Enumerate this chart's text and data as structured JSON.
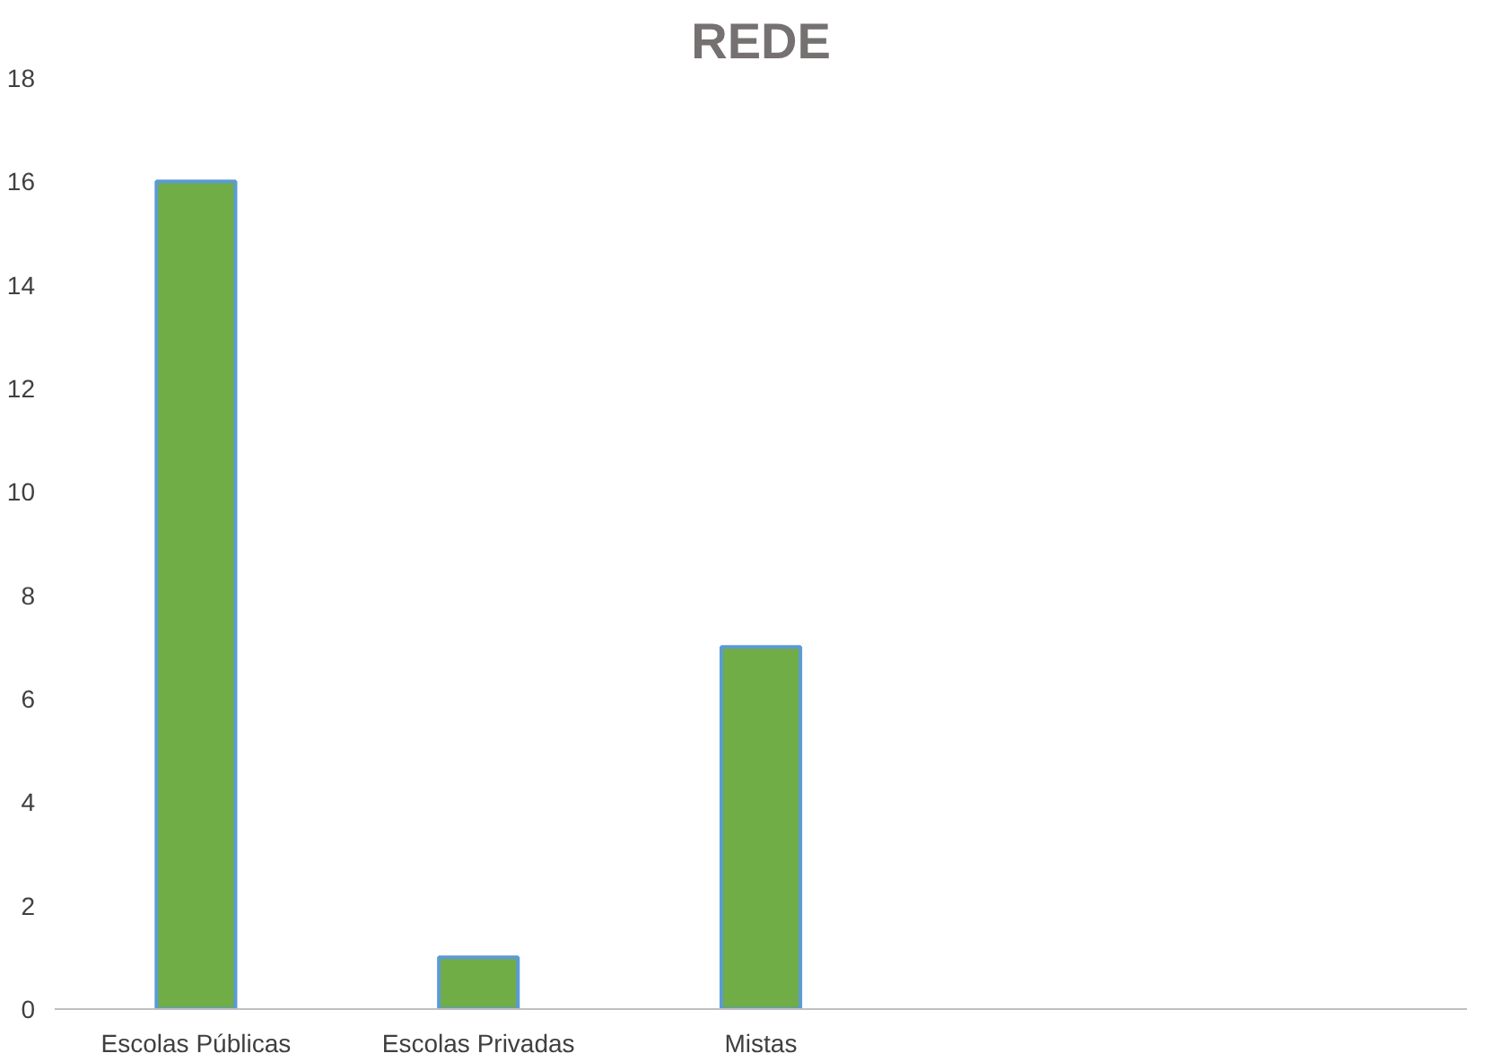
{
  "chart_data": {
    "type": "bar",
    "title": "REDE",
    "categories": [
      "Escolas Públicas",
      "Escolas Privadas",
      "Mistas",
      null,
      null
    ],
    "values": [
      16,
      1,
      7,
      null,
      null
    ],
    "color": "#70ad47",
    "ylim": [
      0,
      18
    ],
    "yticks": [
      0,
      2,
      4,
      6,
      8,
      10,
      12,
      14,
      16,
      18
    ],
    "grid": false
  }
}
